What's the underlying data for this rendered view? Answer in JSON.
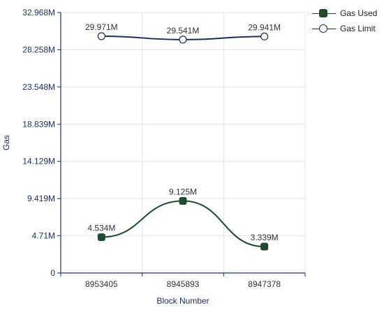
{
  "chart_data": {
    "type": "line",
    "categories": [
      "8953405",
      "8945893",
      "8947378"
    ],
    "series": [
      {
        "name": "Gas Used",
        "values": [
          4534000,
          9125000,
          3339000
        ],
        "labels": [
          "4.534M",
          "9.125M",
          "3.339M"
        ],
        "color": "#1e4b2e"
      },
      {
        "name": "Gas Limit",
        "values": [
          29971000,
          29541000,
          29941000
        ],
        "labels": [
          "29.971M",
          "29.541M",
          "29.941M"
        ],
        "color": "#1a2e5e"
      }
    ],
    "xlabel": "Block Number",
    "ylabel": "Gas",
    "ylim": [
      0,
      32968000
    ],
    "yticks": [
      0,
      4710000,
      9419000,
      14129000,
      18839000,
      23548000,
      28258000,
      32968000
    ],
    "ytick_labels": [
      "0",
      "4.71M",
      "9.419M",
      "14.129M",
      "18.839M",
      "23.548M",
      "28.258M",
      "32.968M"
    ],
    "grid": true,
    "smooth": true,
    "legend_position": "top-right"
  },
  "colors": {
    "axis": "#1a2e5e",
    "grid": "#e3e3e3",
    "label_text": "#333333",
    "tick_text": "#1a2e5e"
  }
}
